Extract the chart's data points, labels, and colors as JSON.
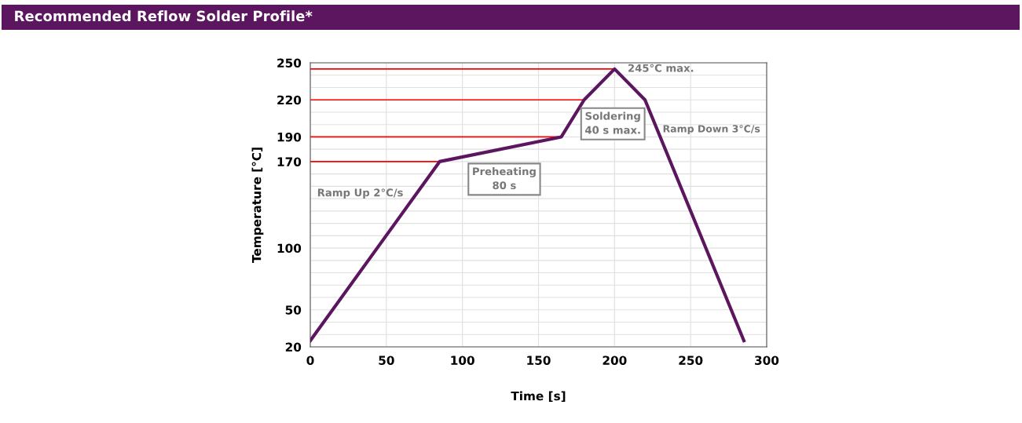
{
  "chart_data": {
    "type": "line",
    "title": "Recommended Reflow Solder Profile*",
    "xlabel": "Time [s]",
    "ylabel": "Temperature [°C]",
    "series": [
      {
        "color": "#ff0000",
        "x": [
          0,
          85
        ],
        "values": [
          170,
          170
        ],
        "line_style": "solid"
      },
      {
        "color": "#ff0000",
        "x": [
          0,
          165
        ],
        "values": [
          190,
          190
        ]
      },
      {
        "color": "#ff0000",
        "x": [
          0,
          180
        ],
        "values": [
          220,
          220
        ]
      },
      {
        "color": "#ff0000",
        "x": [
          0,
          200
        ],
        "values": [
          245,
          245
        ]
      },
      {
        "color": "#5c1660",
        "x": [
          0,
          85,
          165,
          180,
          200,
          220,
          285
        ],
        "values": [
          25,
          170,
          190,
          220,
          245,
          220,
          25
        ]
      }
    ],
    "annotations": [
      {
        "text": "245°C max.",
        "x": 200,
        "y": 245
      },
      "Soldering\n40 s max.",
      "Preheating\n80 s",
      "Ramp Up 2°C/s",
      "Ramp Down 3°C/s"
    ],
    "xlim": [
      0,
      300
    ],
    "xticks": [
      0,
      50,
      100,
      150,
      200,
      250,
      300
    ],
    "ylim": [
      20,
      250
    ],
    "yticks": [
      20,
      {
        "value": 30,
        "label": null
      },
      {
        "value": 40,
        "label": null
      },
      50,
      {
        "value": 60,
        "label": null
      },
      {
        "value": 70,
        "label": null
      },
      {
        "value": 80,
        "label": null
      },
      {
        "value": 90,
        "label": null
      },
      100,
      {
        "value": 110,
        "label": null
      },
      {
        "value": 120,
        "label": null
      },
      {
        "value": 130,
        "label": null
      },
      {
        "value": 140,
        "label": null
      },
      {
        "value": 150,
        "label": null
      },
      {
        "value": 160,
        "label": null
      },
      170,
      {
        "value": 180,
        "label": null
      },
      190,
      {
        "value": 200,
        "label": null
      },
      {
        "value": 210,
        "label": null
      },
      220,
      {
        "value": 230,
        "label": null
      },
      {
        "value": 240,
        "label": null
      },
      250
    ],
    "grid": true,
    "legend": false
  }
}
